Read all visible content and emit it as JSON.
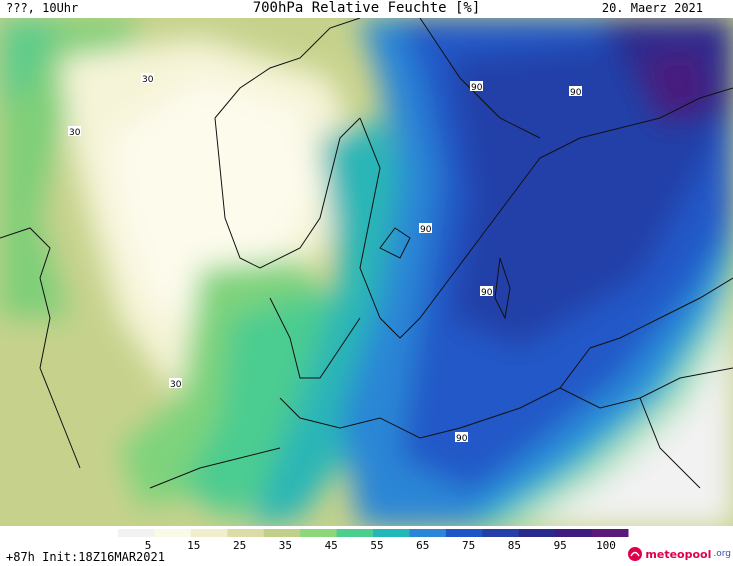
{
  "header": {
    "left": "???, 10Uhr",
    "title": "700hPa Relative Feuchte [%]",
    "date": "20. Maerz 2021"
  },
  "footer": {
    "init": "+87h Init:18Z16MAR2021",
    "brand_main": "meteopool",
    "brand_suffix": ".org"
  },
  "colorbar": {
    "ticks": [
      "5",
      "15",
      "25",
      "35",
      "45",
      "55",
      "65",
      "75",
      "85",
      "95",
      "100"
    ],
    "colors": [
      "#f2f2f2",
      "#fafae6",
      "#f0efcc",
      "#dcdca8",
      "#c0d08a",
      "#8ed67a",
      "#4ccf8e",
      "#22b8b8",
      "#2a87d8",
      "#2055c8",
      "#2440a8",
      "#2a2a8c",
      "#3e1c80",
      "#5a1a78"
    ]
  },
  "contour_labels": [
    {
      "text": "30"
    },
    {
      "text": "30"
    },
    {
      "text": "30"
    },
    {
      "text": "90"
    },
    {
      "text": "90"
    },
    {
      "text": "90"
    },
    {
      "text": "90"
    },
    {
      "text": "90"
    }
  ]
}
